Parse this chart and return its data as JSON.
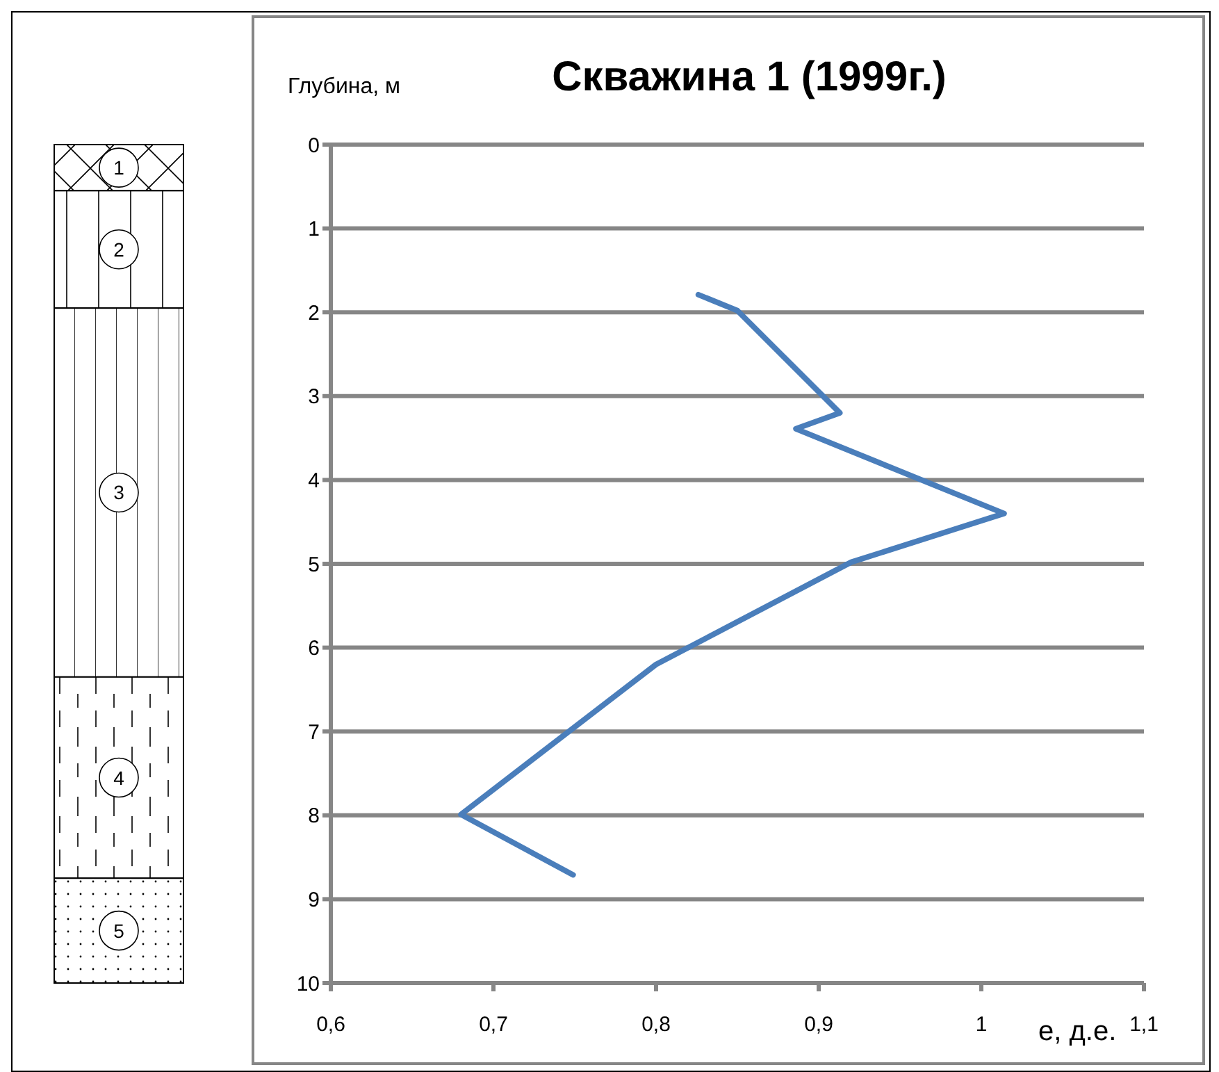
{
  "chart_data": {
    "type": "line",
    "title": "Скважина 1 (1999г.)",
    "xlabel": "е, д.е.",
    "ylabel": "Глубина, м",
    "x": [
      0.826,
      0.85,
      0.913,
      0.886,
      1.014,
      0.92,
      0.8,
      0.68,
      0.749
    ],
    "series": [
      {
        "color": "#4a7ebb",
        "values": [
          1.79,
          1.98,
          3.2,
          3.39,
          4.4,
          4.98,
          6.2,
          7.99,
          8.71
        ]
      }
    ],
    "xlim": [
      0.6,
      1.1
    ],
    "xticks": [
      {
        "value": 0.6,
        "label": "0,6"
      },
      {
        "value": 0.7,
        "label": "0,7"
      },
      {
        "value": 0.8,
        "label": "0,8"
      },
      {
        "value": 0.9,
        "label": "0,9"
      },
      {
        "value": 1,
        "label": "1"
      },
      {
        "value": 1.1,
        "label": "1,1"
      }
    ],
    "ylim": [
      10,
      0
    ],
    "yticks": [
      0,
      1,
      2,
      3,
      4,
      5,
      6,
      7,
      8,
      9,
      10
    ],
    "grid": "y",
    "marker": "none",
    "line_style": "solid",
    "annotations": [
      "1",
      "2",
      "3",
      "4",
      "5"
    ]
  }
}
